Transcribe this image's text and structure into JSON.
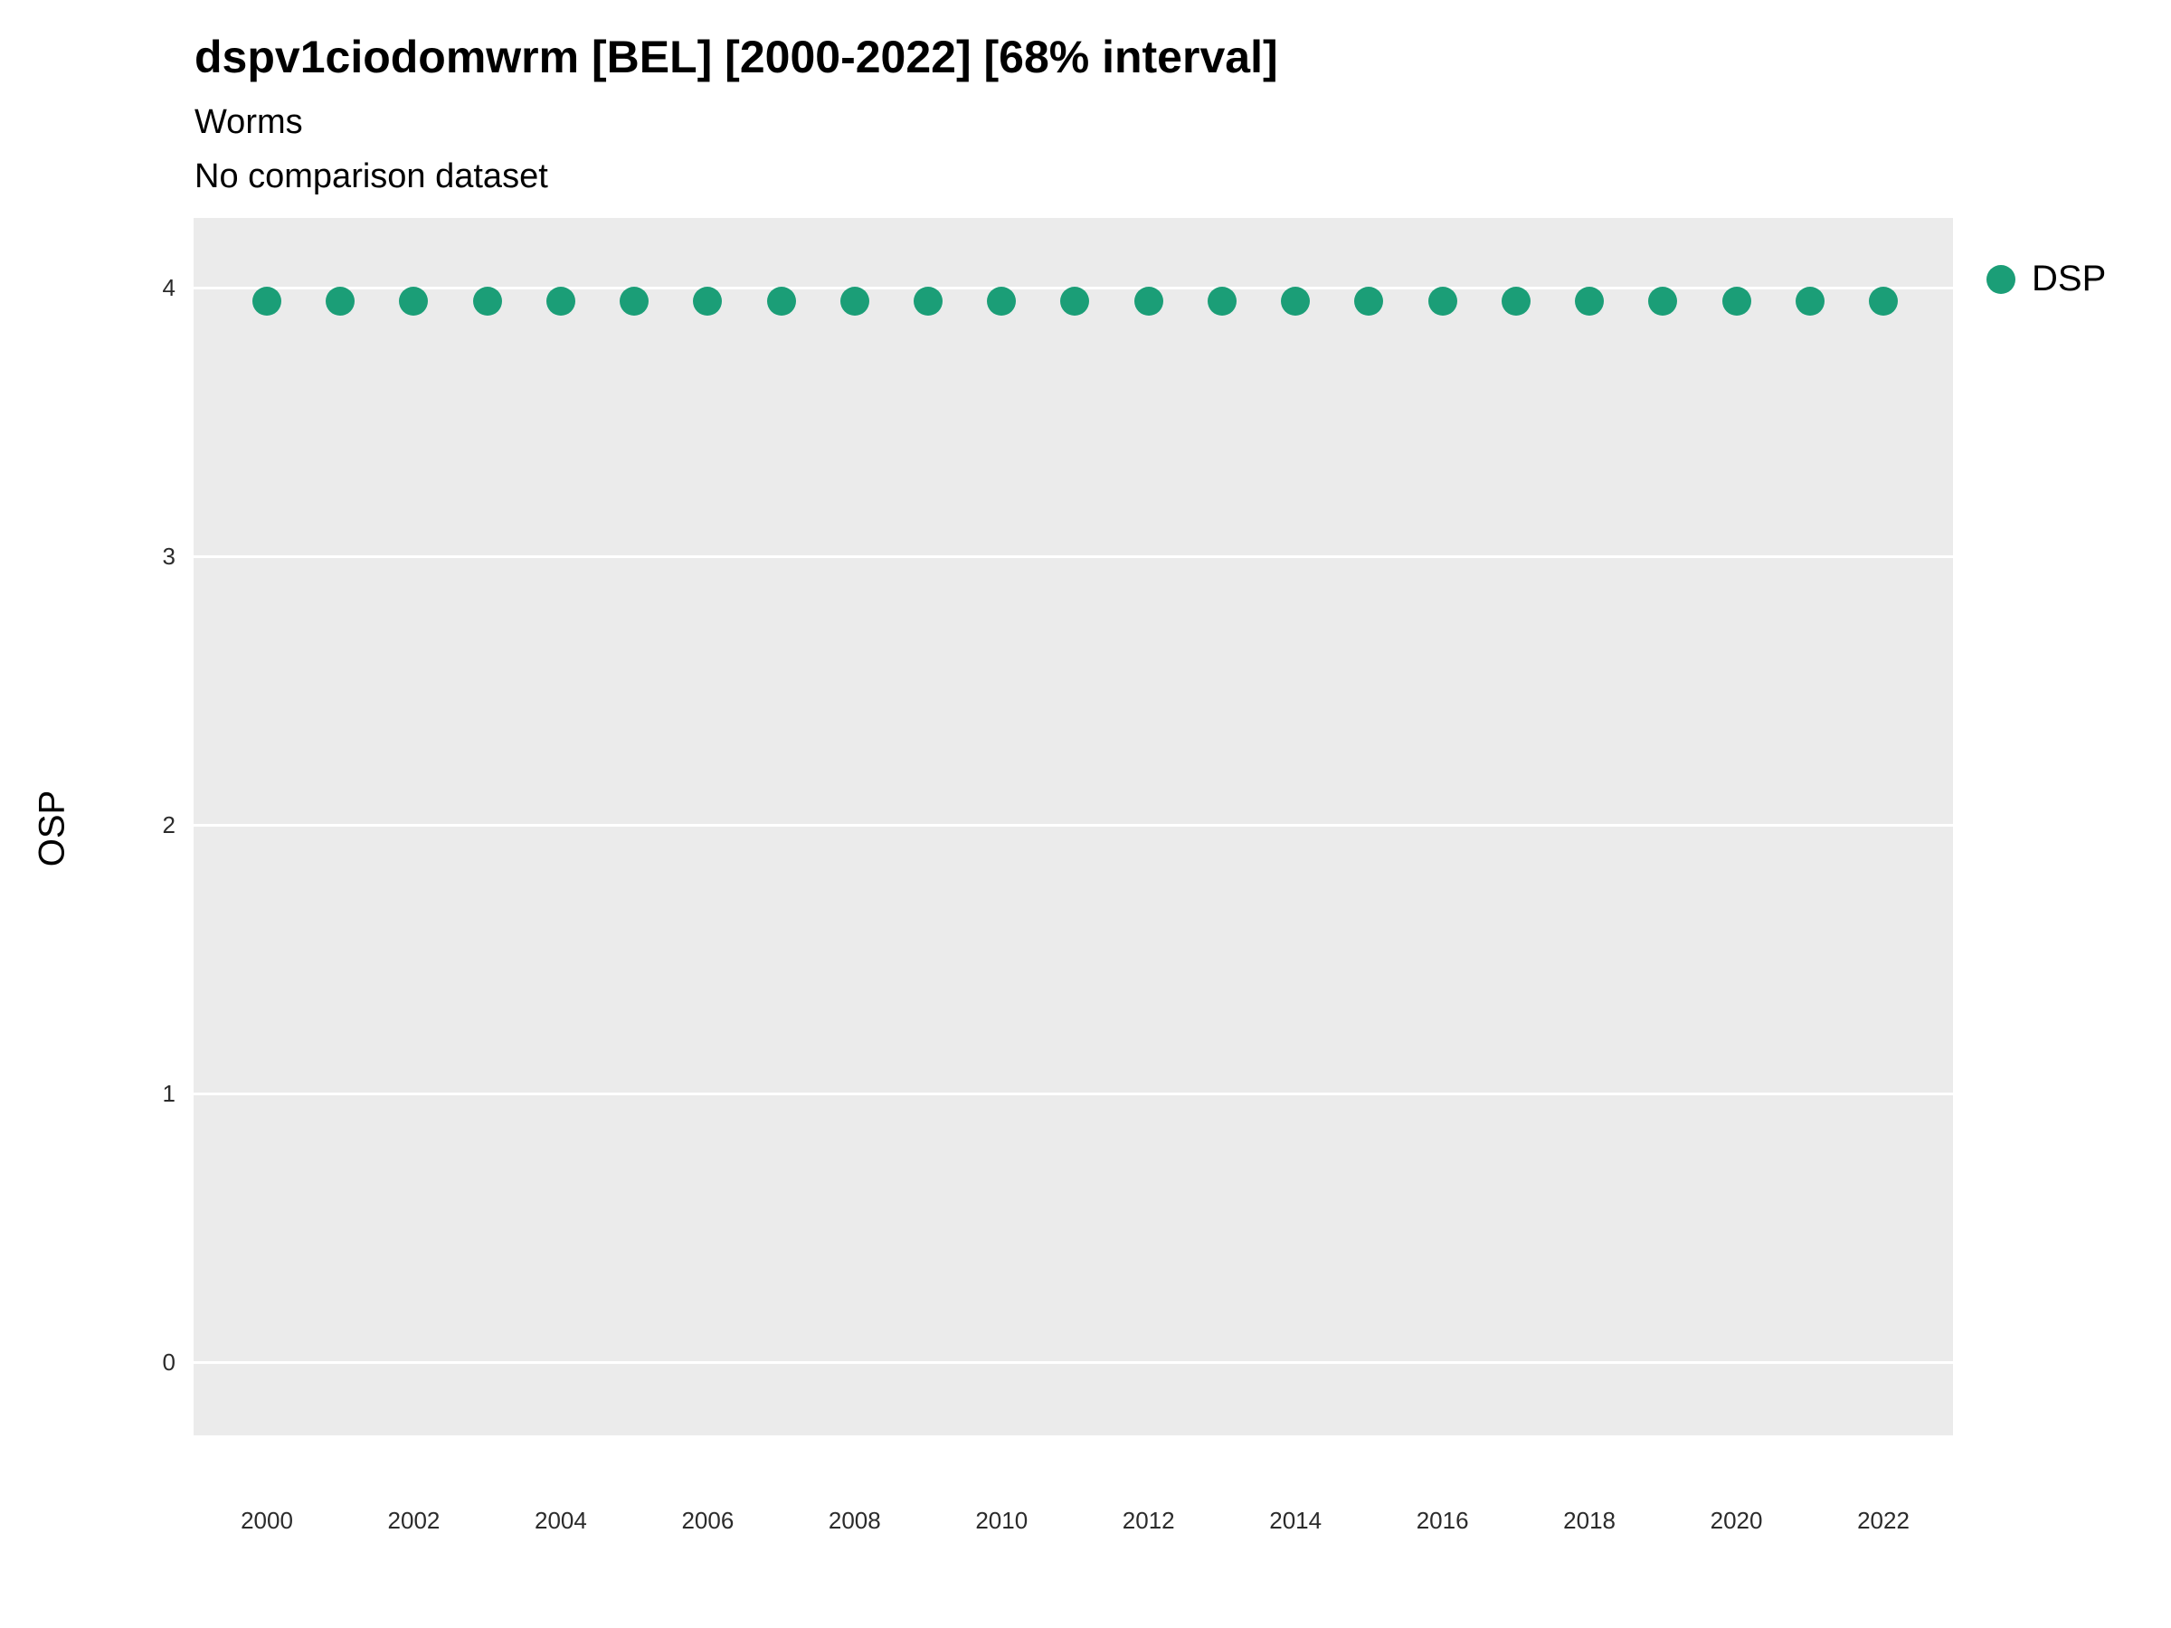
{
  "chart_data": {
    "type": "scatter",
    "title": "dspv1ciodomwrm [BEL] [2000-2022] [68% interval]",
    "subtitle": "Worms",
    "subtitle2": "No comparison dataset",
    "xlabel": "",
    "ylabel": "OSP",
    "interval_label": "68% interval",
    "x": [
      2000,
      2001,
      2002,
      2003,
      2004,
      2005,
      2006,
      2007,
      2008,
      2009,
      2010,
      2011,
      2012,
      2013,
      2014,
      2015,
      2016,
      2017,
      2018,
      2019,
      2020,
      2021,
      2022
    ],
    "series": [
      {
        "name": "DSP",
        "color": "#1b9e77",
        "values": [
          3.95,
          3.95,
          3.95,
          3.95,
          3.95,
          3.95,
          3.95,
          3.95,
          3.95,
          3.95,
          3.95,
          3.95,
          3.95,
          3.95,
          3.95,
          3.95,
          3.95,
          3.95,
          3.95,
          3.95,
          3.95,
          3.95,
          3.95
        ],
        "interval_low": [
          3.9,
          3.9,
          3.9,
          3.9,
          3.9,
          3.9,
          3.9,
          3.9,
          3.9,
          3.9,
          3.9,
          3.9,
          3.9,
          3.9,
          3.9,
          3.9,
          3.9,
          3.9,
          3.9,
          3.9,
          3.9,
          3.9,
          3.9
        ],
        "interval_high": [
          3.98,
          3.98,
          3.98,
          3.98,
          3.98,
          3.98,
          3.98,
          3.98,
          3.98,
          3.98,
          3.98,
          3.98,
          3.98,
          3.98,
          3.98,
          3.98,
          3.98,
          3.98,
          3.98,
          3.98,
          3.98,
          3.98,
          3.98
        ]
      }
    ],
    "yticks": [
      0,
      1,
      2,
      3,
      4
    ],
    "xticks": [
      2000,
      2002,
      2004,
      2006,
      2008,
      2010,
      2012,
      2014,
      2016,
      2018,
      2020,
      2022
    ],
    "ylim": [
      -0.18,
      4.3
    ],
    "grid": "horizontal-major",
    "panel_background": "#EBEBEB",
    "gridline_color": "#FFFFFF",
    "legend_position": "right"
  }
}
